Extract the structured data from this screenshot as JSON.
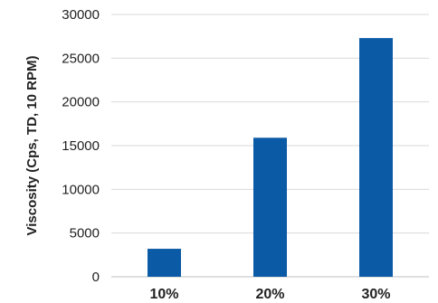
{
  "chart_data": {
    "type": "bar",
    "categories": [
      "10%",
      "20%",
      "30%"
    ],
    "values": [
      3200,
      15900,
      27300
    ],
    "ylabel": "Viscosity (Cps, TD, 10 RPM)",
    "xlabel": "",
    "ylim": [
      0,
      30000
    ],
    "yticks": [
      0,
      5000,
      10000,
      15000,
      20000,
      25000,
      30000
    ],
    "grid": true,
    "legend": "none",
    "colors": {
      "bar": "#0b5aa5",
      "grid": "#d9d9d9",
      "axis": "#bfbfbf"
    }
  }
}
